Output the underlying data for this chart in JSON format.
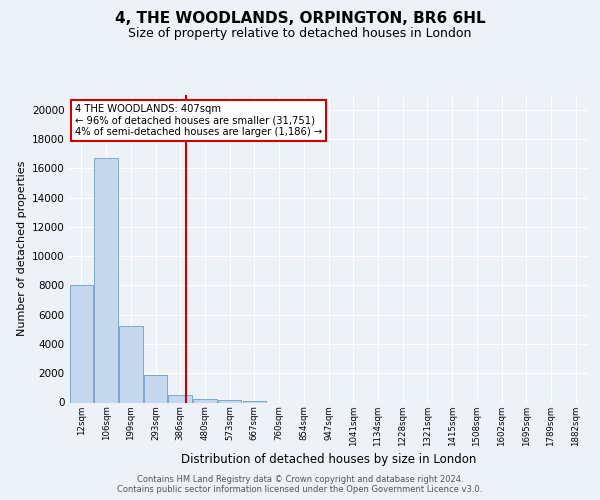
{
  "title1": "4, THE WOODLANDS, ORPINGTON, BR6 6HL",
  "title2": "Size of property relative to detached houses in London",
  "xlabel": "Distribution of detached houses by size in London",
  "ylabel": "Number of detached properties",
  "footer1": "Contains HM Land Registry data © Crown copyright and database right 2024.",
  "footer2": "Contains public sector information licensed under the Open Government Licence v3.0.",
  "annotation_title": "4 THE WOODLANDS: 407sqm",
  "annotation_line1": "← 96% of detached houses are smaller (31,751)",
  "annotation_line2": "4% of semi-detached houses are larger (1,186) →",
  "categories": [
    "12sqm",
    "106sqm",
    "199sqm",
    "293sqm",
    "386sqm",
    "480sqm",
    "573sqm",
    "667sqm",
    "760sqm",
    "854sqm",
    "947sqm",
    "1041sqm",
    "1134sqm",
    "1228sqm",
    "1321sqm",
    "1415sqm",
    "1508sqm",
    "1602sqm",
    "1695sqm",
    "1789sqm",
    "1882sqm"
  ],
  "values": [
    8000,
    16700,
    5200,
    1900,
    500,
    250,
    170,
    120,
    0,
    0,
    0,
    0,
    0,
    0,
    0,
    0,
    0,
    0,
    0,
    0,
    0
  ],
  "bar_color": "#c5d8ee",
  "bar_edge_color": "#6b9ec8",
  "vline_color": "#cc0000",
  "box_edge_color": "#cc0000",
  "ylim": [
    0,
    21000
  ],
  "yticks": [
    0,
    2000,
    4000,
    6000,
    8000,
    10000,
    12000,
    14000,
    16000,
    18000,
    20000
  ],
  "bg_color": "#edf2f9",
  "grid_color": "#ffffff",
  "footer_color": "#555555",
  "vline_x_index": 4.22
}
